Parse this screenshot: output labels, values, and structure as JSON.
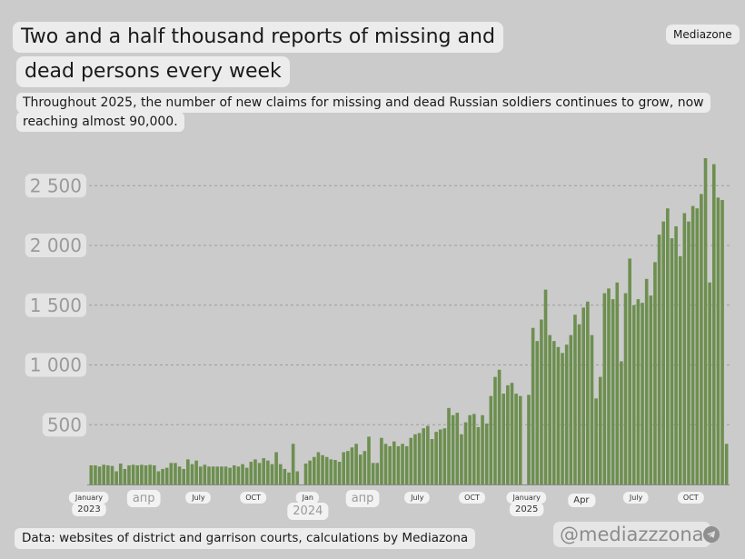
{
  "header": {
    "title_line1": "Two and a half thousand reports of missing and",
    "title_line2": "dead persons every week",
    "subtitle_line1": "Throughout 2025, the number of new claims for missing and dead Russian soldiers continues to grow, now",
    "subtitle_line2": "reaching almost 90,000.",
    "brand": "Mediazone"
  },
  "footer": {
    "source": "Data: websites of district and garrison courts, calculations by Mediazona",
    "handle": "@mediazzzona"
  },
  "colors": {
    "background": "#cbcbcb",
    "bar": "#6d8f4f",
    "bar_edge": "#5c7c42",
    "grid": "#9c9c9c",
    "label_pill": "#ececec"
  },
  "icons": {
    "telegram": "telegram-icon"
  },
  "chart_data": {
    "type": "bar",
    "title": "Two and a half thousand reports of missing and dead persons every week",
    "xlabel": "",
    "ylabel": "",
    "ylim": [
      0,
      2700
    ],
    "yticks": [
      500,
      1000,
      1500,
      2000,
      2500
    ],
    "ytick_labels": [
      "500",
      "1 000",
      "1 500",
      "2 000",
      "2 500"
    ],
    "grid": true,
    "x_tick_labels": [
      {
        "label": "January",
        "sub": "2023",
        "week": 0
      },
      {
        "label": "апр",
        "week": 13
      },
      {
        "label": "July",
        "week": 26
      },
      {
        "label": "OCT",
        "week": 39
      },
      {
        "label": "Jan",
        "sub": "2024",
        "week": 52
      },
      {
        "label": "апр",
        "week": 65
      },
      {
        "label": "July",
        "week": 78
      },
      {
        "label": "OCT",
        "week": 91
      },
      {
        "label": "January",
        "sub": "2025",
        "week": 104
      },
      {
        "label": "Apr",
        "week": 117
      },
      {
        "label": "July",
        "week": 130
      },
      {
        "label": "OCT",
        "week": 143
      }
    ],
    "series": [
      {
        "values": [
          160,
          160,
          150,
          165,
          160,
          155,
          110,
          175,
          130,
          160,
          165,
          160,
          165,
          160,
          165,
          160,
          110,
          130,
          140,
          180,
          180,
          150,
          130,
          210,
          170,
          200,
          150,
          165,
          150,
          150,
          150,
          150,
          150,
          140,
          160,
          150,
          170,
          140,
          190,
          210,
          180,
          220,
          200,
          170,
          270,
          170,
          130,
          100,
          340,
          110,
          0,
          175,
          200,
          230,
          270,
          245,
          230,
          210,
          205,
          190,
          270,
          280,
          310,
          340,
          250,
          280,
          400,
          180,
          180,
          390,
          340,
          320,
          360,
          320,
          340,
          320,
          390,
          420,
          430,
          470,
          490,
          380,
          440,
          460,
          470,
          640,
          580,
          600,
          420,
          520,
          580,
          590,
          480,
          580,
          510,
          740,
          900,
          960,
          760,
          830,
          850,
          760,
          740,
          0,
          750,
          1310,
          1200,
          1380,
          1630,
          1250,
          1200,
          1150,
          1100,
          1170,
          1250,
          1420,
          1340,
          1480,
          1530,
          1250,
          720,
          900,
          1600,
          1640,
          1550,
          1690,
          1030,
          1600,
          1890,
          1500,
          1550,
          1520,
          1720,
          1580,
          1860,
          2090,
          2200,
          2310,
          2060,
          2160,
          1910,
          2270,
          2200,
          2330,
          2310,
          2430,
          2730,
          1690,
          2680,
          2400,
          2380,
          340
        ]
      }
    ]
  }
}
